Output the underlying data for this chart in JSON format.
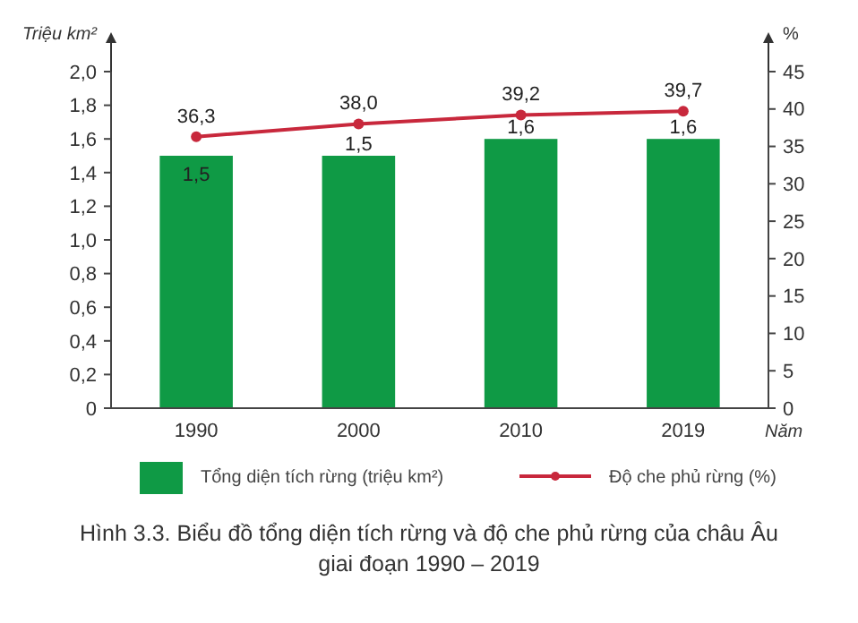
{
  "chart_data": {
    "type": "bar",
    "title": "Hình 3.3. Biểu đồ tổng diện tích rừng và độ che phủ rừng của châu Âu\ngiai đoạn 1990 – 2019",
    "ylabel": "Triệu km²",
    "y2label": "%",
    "xlabel": "Năm",
    "categories": [
      "1990",
      "2000",
      "2010",
      "2019"
    ],
    "series": [
      {
        "name": "Tổng diện tích rừng (triệu km²)",
        "color": "#0f9a45",
        "values": [
          1.5,
          1.5,
          1.6,
          1.6
        ],
        "value_labels": [
          "1,5",
          "1,5",
          "1,6",
          "1,6"
        ]
      },
      {
        "type": "line",
        "name": "Độ che phủ rừng (%)",
        "color": "#c8283c",
        "axis": "y2",
        "marker": "circle",
        "values": [
          36.3,
          38.0,
          39.2,
          39.7
        ],
        "value_labels": [
          "36,3",
          "38,0",
          "39,2",
          "39,7"
        ]
      }
    ],
    "ylim": [
      0,
      2.0
    ],
    "yticks": [
      0,
      {
        "value": 0.2,
        "label": "0,2"
      },
      {
        "value": 0.4,
        "label": "0,4"
      },
      {
        "value": 0.6,
        "label": "0,6"
      },
      {
        "value": 0.8,
        "label": "0,8"
      },
      {
        "value": 1.0,
        "label": "1,0"
      },
      {
        "value": 1.2,
        "label": "1,2"
      },
      {
        "value": 1.4,
        "label": "1,4"
      },
      {
        "value": 1.6,
        "label": "1,6"
      },
      {
        "value": 1.8,
        "label": "1,8"
      },
      {
        "value": 2.0,
        "label": "2,0"
      }
    ],
    "y2lim": [
      0,
      45
    ],
    "y2ticks": [
      0,
      5,
      10,
      15,
      20,
      25,
      30,
      35,
      40,
      45
    ],
    "legend": "bottom",
    "grid": false
  }
}
